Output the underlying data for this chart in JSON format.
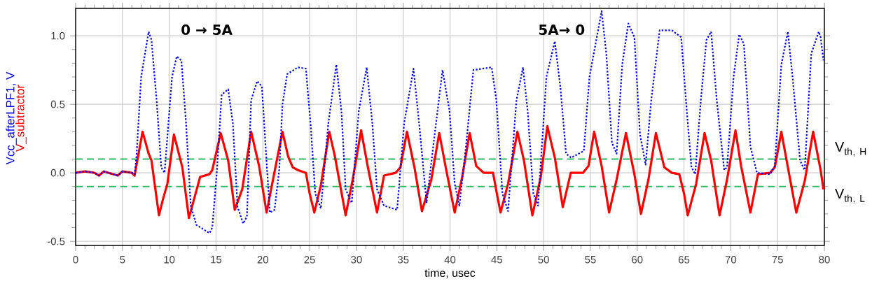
{
  "chart_data": {
    "type": "line",
    "xlabel": "time, usec",
    "xlim": [
      0,
      80
    ],
    "ylim": [
      -0.53,
      1.2
    ],
    "xticks": [
      0,
      5,
      10,
      15,
      20,
      25,
      30,
      35,
      40,
      45,
      50,
      55,
      60,
      65,
      70,
      75,
      80
    ],
    "yticks": [
      -0.5,
      {
        "value": 0,
        "label": "0.0"
      },
      0.5,
      {
        "value": 1,
        "label": "1.0"
      }
    ],
    "grid": true,
    "legend": "left",
    "series": [
      {
        "name": "Vcc_afterLPF1, V",
        "color": "#0000ff",
        "line_style": "dotted",
        "x": [
          0,
          1,
          2,
          2.5,
          3,
          4.5,
          5,
          6,
          6.3,
          6.5,
          7.0,
          7.8,
          8.1,
          8.65,
          9.15,
          9.5,
          10.3,
          10.8,
          11.3,
          11.8,
          12.3,
          12.9,
          14.3,
          14.6,
          15.1,
          15.6,
          16.3,
          16.8,
          17.3,
          17.9,
          18.3,
          18.75,
          19.4,
          19.9,
          20.3,
          20.75,
          21.25,
          21.75,
          22.1,
          22.6,
          23.75,
          24.6,
          25.1,
          25.6,
          26.2,
          27.0,
          27.85,
          28.4,
          28.85,
          29.5,
          30.25,
          31.1,
          31.7,
          32.2,
          32.95,
          34.35,
          35.1,
          36.1,
          36.7,
          37.5,
          38.2,
          39.2,
          39.95,
          40.5,
          41.0,
          41.7,
          42.5,
          44.45,
          44.95,
          45.6,
          46.2,
          47.1,
          47.8,
          48.3,
          48.9,
          49.4,
          50.3,
          51.2,
          51.8,
          52.4,
          52.95,
          54.3,
          54.9,
          56.2,
          56.7,
          57.3,
          57.8,
          58.4,
          59.05,
          59.7,
          60.3,
          60.9,
          61.5,
          62.4,
          63.7,
          64.7,
          65.3,
          65.8,
          66.2,
          66.8,
          67.4,
          67.9,
          68.5,
          69.3,
          69.6,
          70.3,
          70.9,
          71.4,
          72.1,
          72.8,
          74.2,
          74.7,
          75.4,
          76.1,
          76.6,
          77.4,
          77.9,
          78.6,
          79.4,
          79.6,
          79.9
        ],
        "values": [
          0,
          0.01,
          0,
          -0.02,
          0.01,
          -0.02,
          0.01,
          0,
          -0.01,
          0.12,
          0.7,
          1.03,
          0.97,
          0.53,
          0.04,
          0.0,
          0.7,
          0.85,
          0.82,
          0.36,
          -0.24,
          -0.38,
          -0.44,
          -0.4,
          0.02,
          0.57,
          0.61,
          0.36,
          -0.25,
          -0.37,
          -0.32,
          0.53,
          0.67,
          0.63,
          0.19,
          -0.29,
          -0.27,
          0.02,
          0.5,
          0.72,
          0.77,
          0.76,
          0.36,
          -0.15,
          -0.26,
          0.36,
          0.79,
          0.45,
          -0.12,
          -0.22,
          0.45,
          0.77,
          0.36,
          -0.12,
          -0.24,
          -0.27,
          0.36,
          0.76,
          0.36,
          -0.22,
          0.19,
          0.75,
          0.45,
          -0.08,
          -0.24,
          0.19,
          0.75,
          0.77,
          0.53,
          -0.15,
          -0.28,
          0.53,
          0.77,
          0.45,
          -0.15,
          -0.24,
          0.7,
          0.96,
          0.62,
          0.14,
          0.11,
          0.16,
          0.7,
          1.18,
          0.87,
          0.22,
          0.14,
          0.79,
          1.09,
          0.99,
          0.28,
          0.06,
          0.53,
          1.04,
          1.04,
          0.99,
          0.45,
          0.04,
          -0.01,
          0.53,
          0.97,
          1.03,
          0.53,
          0.02,
          0.04,
          0.7,
          1.01,
          0.94,
          0.19,
          0.0,
          -0.01,
          0.05,
          0.79,
          1.03,
          0.7,
          0.09,
          0.02,
          0.87,
          1.03,
          0.99,
          0.82
        ]
      },
      {
        "name": "V_subtractor",
        "color": "#ff0000",
        "line_style": "solid",
        "x": [
          0,
          1,
          2,
          2.5,
          3,
          4.5,
          5,
          6,
          6.3,
          7.15,
          7.8,
          8.1,
          8.9,
          9.3,
          9.8,
          10.5,
          11.4,
          12.1,
          12.9,
          13.3,
          14.3,
          14.6,
          15.5,
          16.3,
          17.0,
          17.8,
          18.75,
          19.6,
          20.4,
          21.2,
          22.1,
          22.7,
          23.2,
          23.75,
          24.6,
          25.0,
          25.5,
          26.2,
          27.1,
          27.7,
          28.85,
          29.6,
          30.5,
          31.2,
          32.2,
          32.95,
          34.2,
          34.7,
          35.4,
          36.2,
          37.0,
          38.0,
          38.85,
          39.6,
          40.5,
          41.3,
          42.1,
          42.8,
          43.6,
          44.6,
          45.0,
          45.4,
          46.2,
          47.2,
          47.9,
          48.8,
          49.7,
          50.4,
          51.2,
          52.05,
          52.9,
          54.2,
          54.8,
          55.4,
          56.2,
          57.0,
          57.8,
          58.8,
          59.7,
          60.4,
          61.2,
          62.0,
          62.9,
          63.7,
          64.5,
          65.0,
          65.4,
          66.3,
          67.2,
          67.9,
          68.8,
          69.6,
          70.5,
          71.1,
          72.1,
          72.9,
          74.2,
          74.7,
          75.4,
          76.1,
          77.0,
          77.9,
          78.8,
          79.6,
          79.9
        ],
        "values": [
          0,
          0.01,
          0,
          -0.02,
          0.01,
          -0.02,
          0.01,
          0,
          -0.02,
          0.3,
          0.14,
          0.09,
          -0.31,
          -0.2,
          -0.08,
          0.28,
          0.04,
          -0.33,
          -0.13,
          -0.03,
          -0.01,
          0.02,
          0.29,
          0.09,
          -0.27,
          -0.12,
          0.3,
          0.05,
          -0.29,
          -0.01,
          0.3,
          0.12,
          0.04,
          0.02,
          0,
          -0.15,
          -0.29,
          -0.09,
          0.3,
          0.12,
          -0.31,
          -0.05,
          0.31,
          0.05,
          -0.29,
          -0.02,
          0.0,
          0.04,
          0.3,
          0.04,
          -0.28,
          -0.05,
          0.29,
          0.02,
          -0.29,
          -0.03,
          0.29,
          0.05,
          0.0,
          0,
          -0.15,
          -0.29,
          -0.08,
          0.3,
          0.09,
          -0.31,
          -0.03,
          0.34,
          0.11,
          -0.25,
          0.0,
          0.0,
          0.05,
          0.3,
          0.05,
          -0.29,
          -0.05,
          0.29,
          -0.01,
          -0.3,
          -0.05,
          0.29,
          0.04,
          0.0,
          -0.01,
          -0.15,
          -0.31,
          -0.08,
          0.29,
          0.09,
          -0.31,
          -0.05,
          0.31,
          0.05,
          -0.29,
          -0.01,
          0.0,
          0.04,
          0.3,
          0.04,
          -0.29,
          -0.06,
          0.3,
          0.02,
          -0.12
        ]
      }
    ],
    "ref_lines": [
      {
        "axis": "y",
        "value": 0.1,
        "label": "\\mathrm{V}_{\\mathrm{th,\\ H}}",
        "color": "#33bb66",
        "line_style": "dashed"
      },
      {
        "axis": "y",
        "value": -0.1,
        "label": "\\mathrm{V}_{\\mathrm{th,\\ L}}",
        "color": "#33bb66",
        "line_style": "dashed"
      }
    ],
    "annotations": [
      "0 → 5A",
      "5A→ 0"
    ]
  }
}
